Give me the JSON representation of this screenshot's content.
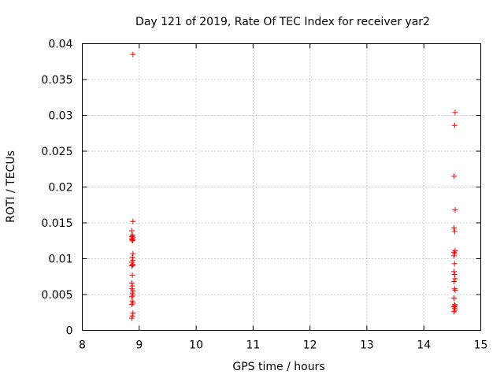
{
  "chart_data": {
    "type": "scatter",
    "title": "Day 121 of 2019, Rate Of TEC Index for receiver yar2",
    "xlabel": "GPS time / hours",
    "ylabel": "ROTI / TECUs",
    "xlim": [
      8,
      15
    ],
    "ylim": [
      0,
      0.04
    ],
    "grid": true,
    "marker": "+",
    "color": "#ff0000",
    "x_ticks": [
      "8",
      "9",
      "10",
      "11",
      "12",
      "13",
      "14",
      "15"
    ],
    "y_ticks": [
      "0",
      "0.005",
      "0.01",
      "0.015",
      "0.02",
      "0.025",
      "0.03",
      "0.035",
      "0.04"
    ],
    "series": [
      {
        "name": "ROTI",
        "points": [
          [
            8.89,
            0.0385
          ],
          [
            8.89,
            0.0152
          ],
          [
            8.87,
            0.0139
          ],
          [
            8.88,
            0.0133
          ],
          [
            8.87,
            0.0131
          ],
          [
            8.89,
            0.013
          ],
          [
            8.88,
            0.0128
          ],
          [
            8.87,
            0.0127
          ],
          [
            8.89,
            0.0126
          ],
          [
            8.88,
            0.0125
          ],
          [
            8.89,
            0.0107
          ],
          [
            8.88,
            0.0102
          ],
          [
            8.89,
            0.0098
          ],
          [
            8.87,
            0.0095
          ],
          [
            8.88,
            0.0092
          ],
          [
            8.89,
            0.0091
          ],
          [
            8.87,
            0.009
          ],
          [
            8.88,
            0.0077
          ],
          [
            8.87,
            0.0066
          ],
          [
            8.88,
            0.0062
          ],
          [
            8.87,
            0.0058
          ],
          [
            8.89,
            0.0055
          ],
          [
            8.88,
            0.0052
          ],
          [
            8.89,
            0.0049
          ],
          [
            8.87,
            0.0047
          ],
          [
            8.88,
            0.0041
          ],
          [
            8.89,
            0.0038
          ],
          [
            8.87,
            0.0036
          ],
          [
            8.89,
            0.0024
          ],
          [
            8.88,
            0.002
          ],
          [
            8.87,
            0.0017
          ],
          [
            14.55,
            0.0304
          ],
          [
            14.54,
            0.0286
          ],
          [
            14.53,
            0.0215
          ],
          [
            14.55,
            0.0168
          ],
          [
            14.53,
            0.0143
          ],
          [
            14.54,
            0.0138
          ],
          [
            14.55,
            0.0111
          ],
          [
            14.53,
            0.0109
          ],
          [
            14.54,
            0.0107
          ],
          [
            14.53,
            0.0104
          ],
          [
            14.54,
            0.0093
          ],
          [
            14.53,
            0.0082
          ],
          [
            14.54,
            0.0078
          ],
          [
            14.55,
            0.0072
          ],
          [
            14.53,
            0.0068
          ],
          [
            14.54,
            0.0058
          ],
          [
            14.55,
            0.0056
          ],
          [
            14.53,
            0.0045
          ],
          [
            14.54,
            0.0036
          ],
          [
            14.55,
            0.0034
          ],
          [
            14.53,
            0.0033
          ],
          [
            14.54,
            0.0031
          ],
          [
            14.55,
            0.0028
          ],
          [
            14.53,
            0.0026
          ]
        ]
      }
    ]
  }
}
